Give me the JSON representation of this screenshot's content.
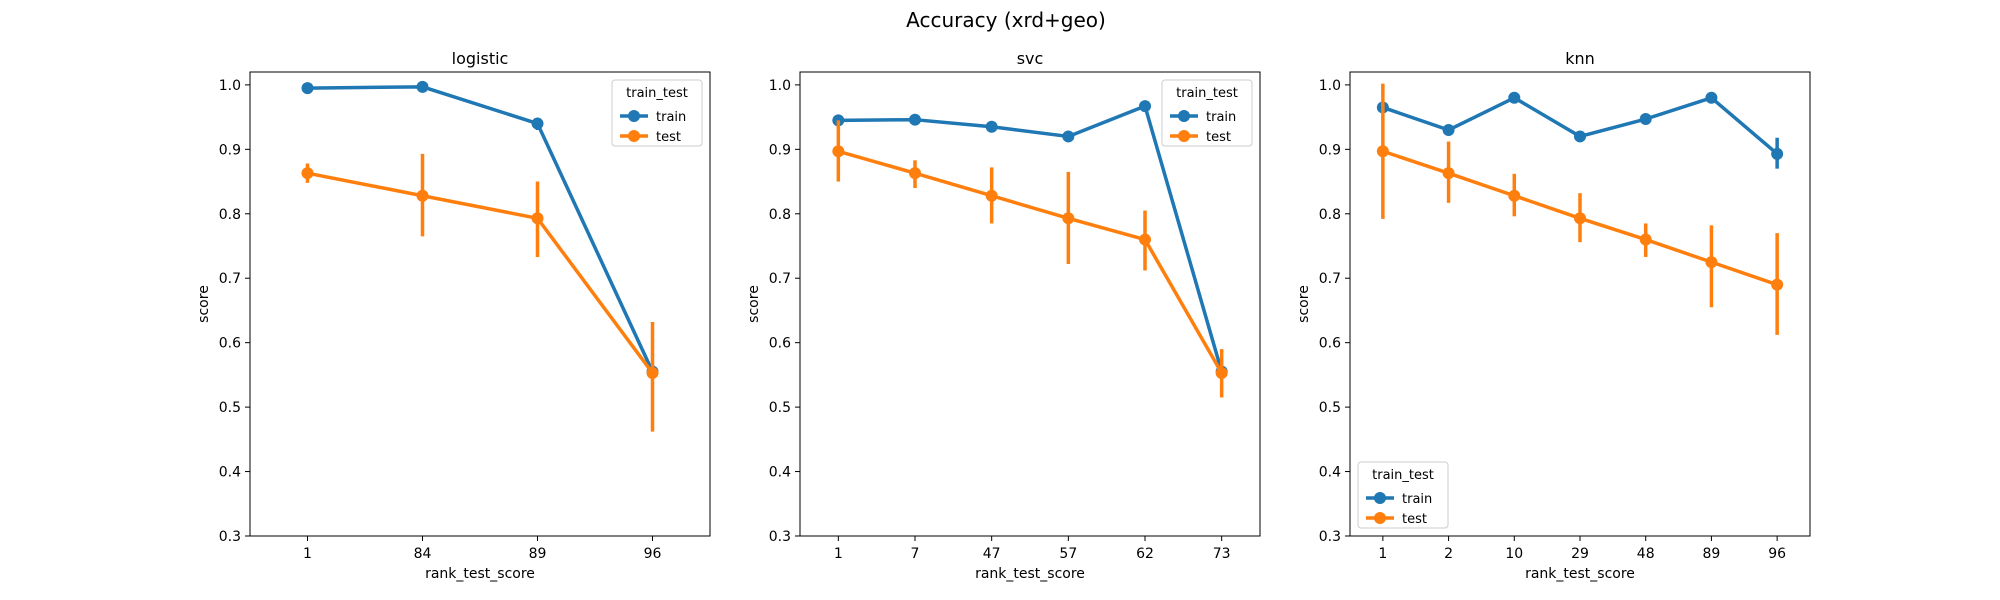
{
  "figure": {
    "title": "Accuracy (xrd+geo)"
  },
  "colors": {
    "train": "#1f77b4",
    "test": "#ff7f0e",
    "axis": "#000000",
    "legend_border": "#cccccc"
  },
  "chart_data": [
    {
      "type": "line",
      "title": "logistic",
      "xlabel": "rank_test_score",
      "ylabel": "score",
      "ylim": [
        0.3,
        1.02
      ],
      "yticks": [
        0.3,
        0.4,
        0.5,
        0.6,
        0.7,
        0.8,
        0.9,
        1.0
      ],
      "categories": [
        "1",
        "84",
        "89",
        "96"
      ],
      "legend": {
        "title": "train_test",
        "position": "top-right"
      },
      "series": [
        {
          "name": "train",
          "values": [
            0.995,
            0.997,
            0.94,
            0.555
          ],
          "err_low": [
            0.993,
            0.995,
            0.93,
            0.545
          ],
          "err_high": [
            0.997,
            0.999,
            0.948,
            0.565
          ]
        },
        {
          "name": "test",
          "values": [
            0.863,
            0.828,
            0.793,
            0.553
          ],
          "err_low": [
            0.848,
            0.765,
            0.733,
            0.462
          ],
          "err_high": [
            0.878,
            0.893,
            0.85,
            0.632
          ]
        }
      ]
    },
    {
      "type": "line",
      "title": "svc",
      "xlabel": "rank_test_score",
      "ylabel": "score",
      "ylim": [
        0.3,
        1.02
      ],
      "yticks": [
        0.3,
        0.4,
        0.5,
        0.6,
        0.7,
        0.8,
        0.9,
        1.0
      ],
      "categories": [
        "1",
        "7",
        "47",
        "57",
        "62",
        "73"
      ],
      "legend": {
        "title": "train_test",
        "position": "top-right"
      },
      "series": [
        {
          "name": "train",
          "values": [
            0.945,
            0.946,
            0.935,
            0.92,
            0.967,
            0.555
          ],
          "err_low": [
            0.942,
            0.943,
            0.932,
            0.917,
            0.962,
            0.55
          ],
          "err_high": [
            0.948,
            0.949,
            0.938,
            0.923,
            0.972,
            0.56
          ]
        },
        {
          "name": "test",
          "values": [
            0.897,
            0.863,
            0.828,
            0.793,
            0.76,
            0.553
          ],
          "err_low": [
            0.85,
            0.84,
            0.785,
            0.722,
            0.712,
            0.515
          ],
          "err_high": [
            0.945,
            0.883,
            0.872,
            0.865,
            0.805,
            0.59
          ]
        }
      ]
    },
    {
      "type": "line",
      "title": "knn",
      "xlabel": "rank_test_score",
      "ylabel": "score",
      "ylim": [
        0.3,
        1.02
      ],
      "yticks": [
        0.3,
        0.4,
        0.5,
        0.6,
        0.7,
        0.8,
        0.9,
        1.0
      ],
      "categories": [
        "1",
        "2",
        "10",
        "29",
        "48",
        "89",
        "96"
      ],
      "legend": {
        "title": "train_test",
        "position": "bottom-left"
      },
      "series": [
        {
          "name": "train",
          "values": [
            0.965,
            0.93,
            0.98,
            0.92,
            0.947,
            0.98,
            0.893
          ],
          "err_low": [
            0.962,
            0.927,
            0.977,
            0.917,
            0.944,
            0.977,
            0.87
          ],
          "err_high": [
            0.968,
            0.933,
            0.983,
            0.923,
            0.95,
            0.983,
            0.918
          ]
        },
        {
          "name": "test",
          "values": [
            0.897,
            0.863,
            0.828,
            0.793,
            0.76,
            0.725,
            0.69
          ],
          "err_low": [
            0.792,
            0.817,
            0.796,
            0.756,
            0.733,
            0.655,
            0.612
          ],
          "err_high": [
            1.002,
            0.912,
            0.862,
            0.832,
            0.785,
            0.782,
            0.77
          ]
        }
      ]
    }
  ]
}
